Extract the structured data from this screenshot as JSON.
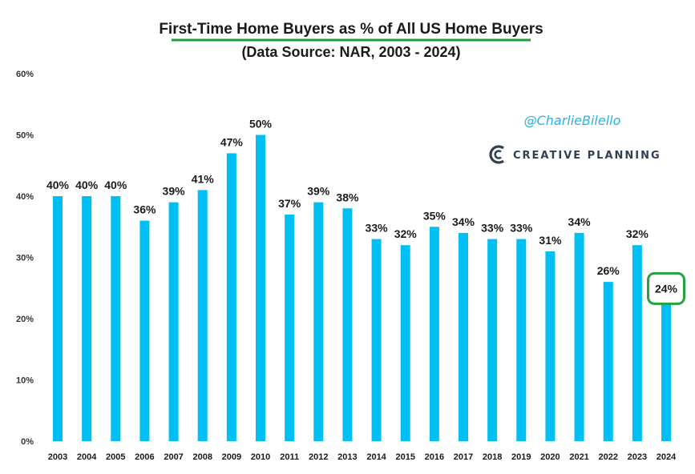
{
  "colors": {
    "bar": "#00BFF3",
    "underline": "#1E9E3A",
    "highlight_box": "#23A23F",
    "handle": "#27B3E8",
    "brand": "#2F4053"
  },
  "header": {
    "title": "First-Time Home Buyers as % of All US Home Buyers",
    "subtitle": "(Data Source: NAR, 2003 - 2024)"
  },
  "branding": {
    "handle": "@CharlieBilello",
    "logo_text": "CREATIVE PLANNING",
    "logo_icon": "creative-planning-logo-icon"
  },
  "chart_data": {
    "type": "bar",
    "title": "First-Time Home Buyers as % of All US Home Buyers",
    "subtitle": "(Data Source: NAR, 2003 - 2024)",
    "xlabel": "",
    "ylabel": "",
    "ylim": [
      0,
      60
    ],
    "yticks": [
      0,
      10,
      20,
      30,
      40,
      50,
      60
    ],
    "ytick_labels": [
      "0%",
      "10%",
      "20%",
      "30%",
      "40%",
      "50%",
      "60%"
    ],
    "grid": false,
    "categories": [
      "2003",
      "2004",
      "2005",
      "2006",
      "2007",
      "2008",
      "2009",
      "2010",
      "2011",
      "2012",
      "2013",
      "2014",
      "2015",
      "2016",
      "2017",
      "2018",
      "2019",
      "2020",
      "2021",
      "2022",
      "2023",
      "2024"
    ],
    "values": [
      40,
      40,
      40,
      36,
      39,
      41,
      47,
      50,
      37,
      39,
      38,
      33,
      32,
      35,
      34,
      33,
      33,
      31,
      34,
      26,
      32,
      24
    ],
    "data_labels": [
      "40%",
      "40%",
      "40%",
      "36%",
      "39%",
      "41%",
      "47%",
      "50%",
      "37%",
      "39%",
      "38%",
      "33%",
      "32%",
      "35%",
      "34%",
      "33%",
      "33%",
      "31%",
      "34%",
      "26%",
      "32%",
      "24%"
    ],
    "highlighted_category": "2024"
  }
}
